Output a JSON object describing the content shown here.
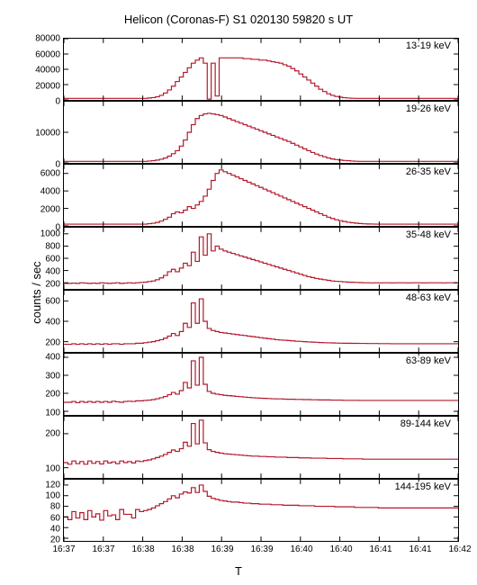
{
  "title": "Helicon (Coronas-F) S1 020130 59820 s UT",
  "ylabel": "counts / sec",
  "xlabel": "T",
  "line_color": "#b2182b",
  "background_color": "#ffffff",
  "axis_color": "#000000",
  "panel_count": 8,
  "x_domain": [
    0,
    300
  ],
  "x_ticks": [
    0,
    30,
    60,
    90,
    120,
    150,
    180,
    210,
    240,
    270,
    300
  ],
  "x_tick_labels": [
    "16:37",
    "16:37",
    "16:38",
    "16:38",
    "16:39",
    "16:39",
    "16:40",
    "16:40",
    "16:41",
    "16:41",
    "16:42"
  ],
  "panels": [
    {
      "label": "13-19 keV",
      "ylim": [
        0,
        80000
      ],
      "yticks": [
        0,
        20000,
        40000,
        60000,
        80000
      ],
      "ytick_labels": [
        "0",
        "20000",
        "40000",
        "60000",
        "80000"
      ],
      "data": [
        2000,
        2000,
        2000,
        2000,
        2000,
        2000,
        2000,
        2000,
        2000,
        2000,
        2000,
        2000,
        2000,
        2000,
        2000,
        2000,
        2000,
        2000,
        2000,
        2000,
        2000,
        2500,
        3000,
        4000,
        6000,
        9000,
        13000,
        18000,
        24000,
        30000,
        36000,
        42000,
        48000,
        52000,
        55000,
        48000,
        1000,
        48000,
        5000,
        55000,
        55000,
        55000,
        55000,
        55000,
        55000,
        54000,
        54000,
        53000,
        53000,
        52000,
        52000,
        51000,
        50000,
        49000,
        48000,
        46000,
        44000,
        41000,
        38000,
        34000,
        30000,
        26000,
        22000,
        18000,
        14000,
        11000,
        8000,
        6000,
        4500,
        3500,
        2800,
        2400,
        2200,
        2000,
        2000,
        2000,
        2000,
        2000,
        2000,
        2000,
        2000,
        2000,
        2000,
        2000,
        2000,
        2000,
        2000,
        2000,
        2000,
        2000,
        2000,
        2000,
        2000,
        2000,
        2000,
        2000,
        2000,
        2000,
        2000,
        2000
      ]
    },
    {
      "label": "19-26 keV",
      "ylim": [
        0,
        20000
      ],
      "yticks": [
        0,
        10000
      ],
      "ytick_labels": [
        "0",
        "10000"
      ],
      "data": [
        500,
        500,
        500,
        500,
        500,
        500,
        500,
        500,
        500,
        500,
        500,
        500,
        500,
        500,
        500,
        500,
        500,
        500,
        500,
        500,
        500,
        600,
        700,
        900,
        1200,
        1600,
        2200,
        3000,
        4000,
        5500,
        7500,
        10000,
        12500,
        14500,
        15500,
        16000,
        16200,
        16000,
        15800,
        15500,
        15000,
        14500,
        14000,
        13500,
        13000,
        12500,
        12000,
        11500,
        11000,
        10500,
        10000,
        9500,
        9000,
        8500,
        8000,
        7500,
        7000,
        6400,
        5800,
        5200,
        4600,
        4000,
        3400,
        2900,
        2400,
        2000,
        1600,
        1300,
        1100,
        900,
        800,
        700,
        600,
        550,
        500,
        500,
        500,
        500,
        500,
        500,
        500,
        500,
        500,
        500,
        500,
        500,
        500,
        500,
        500,
        500,
        500,
        500,
        500,
        500,
        500,
        500,
        500,
        500,
        500,
        500
      ]
    },
    {
      "label": "26-35 keV",
      "ylim": [
        0,
        7000
      ],
      "yticks": [
        0,
        2000,
        4000,
        6000
      ],
      "ytick_labels": [
        "0",
        "2000",
        "4000",
        "6000"
      ],
      "data": [
        200,
        200,
        200,
        200,
        200,
        200,
        200,
        200,
        200,
        200,
        200,
        200,
        200,
        200,
        200,
        200,
        200,
        200,
        200,
        200,
        200,
        250,
        300,
        400,
        550,
        750,
        1000,
        1400,
        1600,
        1500,
        1800,
        2200,
        2000,
        2400,
        2800,
        3400,
        4200,
        5200,
        6000,
        6400,
        6200,
        6000,
        5800,
        5600,
        5400,
        5200,
        5000,
        4800,
        4600,
        4400,
        4200,
        4000,
        3800,
        3600,
        3400,
        3200,
        3000,
        2800,
        2600,
        2400,
        2200,
        2000,
        1800,
        1600,
        1400,
        1200,
        1000,
        850,
        700,
        600,
        500,
        420,
        360,
        310,
        270,
        240,
        220,
        210,
        200,
        200,
        200,
        200,
        200,
        200,
        200,
        200,
        200,
        200,
        200,
        200,
        200,
        200,
        200,
        200,
        200,
        200,
        200,
        200,
        200,
        200
      ]
    },
    {
      "label": "35-48 keV",
      "ylim": [
        100,
        1100
      ],
      "yticks": [
        200,
        400,
        600,
        800,
        1000
      ],
      "ytick_labels": [
        "200",
        "400",
        "600",
        "800",
        "1000"
      ],
      "data": [
        190,
        190,
        195,
        190,
        200,
        195,
        190,
        195,
        190,
        200,
        195,
        190,
        195,
        200,
        190,
        195,
        200,
        195,
        200,
        205,
        210,
        220,
        230,
        250,
        280,
        320,
        380,
        420,
        380,
        440,
        520,
        480,
        700,
        550,
        950,
        650,
        1000,
        720,
        800,
        750,
        720,
        700,
        680,
        660,
        640,
        620,
        600,
        580,
        560,
        540,
        520,
        500,
        480,
        460,
        440,
        420,
        400,
        380,
        360,
        340,
        320,
        300,
        285,
        270,
        260,
        250,
        240,
        230,
        225,
        220,
        215,
        210,
        208,
        205,
        203,
        200,
        200,
        198,
        200,
        199,
        200,
        200,
        198,
        200,
        200,
        200,
        199,
        200,
        200,
        200,
        198,
        200,
        200,
        200,
        200,
        199,
        200,
        200,
        200,
        200
      ]
    },
    {
      "label": "48-63 keV",
      "ylim": [
        100,
        700
      ],
      "yticks": [
        200,
        400,
        600
      ],
      "ytick_labels": [
        "200",
        "400",
        "600"
      ],
      "data": [
        175,
        175,
        180,
        175,
        180,
        175,
        180,
        175,
        180,
        175,
        180,
        175,
        180,
        180,
        175,
        180,
        180,
        180,
        185,
        185,
        190,
        195,
        200,
        210,
        220,
        235,
        255,
        280,
        260,
        300,
        380,
        340,
        580,
        380,
        620,
        400,
        330,
        310,
        300,
        290,
        285,
        280,
        275,
        270,
        265,
        260,
        255,
        250,
        245,
        240,
        235,
        230,
        225,
        220,
        217,
        214,
        211,
        208,
        205,
        203,
        200,
        198,
        196,
        194,
        192,
        190,
        189,
        188,
        187,
        186,
        185,
        185,
        184,
        184,
        183,
        183,
        182,
        182,
        182,
        181,
        181,
        181,
        180,
        180,
        180,
        180,
        180,
        180,
        180,
        180,
        180,
        180,
        180,
        180,
        180,
        180,
        180,
        180,
        180,
        180
      ]
    },
    {
      "label": "63-89 keV",
      "ylim": [
        80,
        420
      ],
      "yticks": [
        100,
        200,
        300,
        400
      ],
      "ytick_labels": [
        "100",
        "200",
        "300",
        "400"
      ],
      "data": [
        150,
        150,
        155,
        148,
        155,
        150,
        155,
        150,
        155,
        150,
        155,
        150,
        156,
        153,
        150,
        155,
        156,
        155,
        158,
        158,
        160,
        162,
        165,
        170,
        175,
        182,
        192,
        205,
        195,
        215,
        260,
        230,
        380,
        245,
        400,
        250,
        210,
        200,
        195,
        192,
        189,
        187,
        185,
        183,
        181,
        179,
        177,
        175,
        174,
        173,
        172,
        171,
        170,
        169,
        169,
        168,
        167,
        167,
        166,
        166,
        165,
        165,
        164,
        164,
        163,
        163,
        163,
        162,
        162,
        162,
        161,
        161,
        161,
        161,
        160,
        160,
        160,
        160,
        160,
        160,
        160,
        160,
        160,
        160,
        160,
        160,
        160,
        160,
        160,
        160,
        160,
        160,
        160,
        160,
        160,
        160,
        160,
        160,
        160,
        160
      ]
    },
    {
      "label": "89-144 keV",
      "ylim": [
        70,
        250
      ],
      "yticks": [
        100,
        200
      ],
      "ytick_labels": [
        "100",
        "200"
      ],
      "data": [
        115,
        110,
        120,
        112,
        118,
        110,
        120,
        113,
        118,
        111,
        120,
        114,
        117,
        112,
        120,
        115,
        118,
        114,
        120,
        118,
        121,
        123,
        126,
        130,
        134,
        139,
        145,
        152,
        148,
        156,
        175,
        163,
        230,
        170,
        240,
        173,
        153,
        148,
        145,
        143,
        141,
        140,
        139,
        138,
        137,
        136,
        135,
        134,
        134,
        133,
        133,
        132,
        132,
        131,
        131,
        131,
        130,
        130,
        130,
        129,
        129,
        129,
        128,
        128,
        128,
        128,
        127,
        127,
        127,
        127,
        126,
        126,
        126,
        126,
        126,
        125,
        125,
        125,
        125,
        125,
        125,
        125,
        125,
        125,
        125,
        125,
        125,
        125,
        125,
        125,
        125,
        125,
        125,
        125,
        125,
        125,
        125,
        125,
        125,
        125
      ]
    },
    {
      "label": "144-195 keV",
      "ylim": [
        15,
        130
      ],
      "yticks": [
        20,
        40,
        60,
        80,
        100,
        120
      ],
      "ytick_labels": [
        "20",
        "40",
        "60",
        "80",
        "100",
        "120"
      ],
      "data": [
        60,
        55,
        70,
        58,
        68,
        55,
        72,
        60,
        66,
        54,
        72,
        62,
        64,
        55,
        74,
        65,
        65,
        58,
        74,
        70,
        72,
        74,
        77,
        81,
        85,
        89,
        94,
        100,
        96,
        103,
        107,
        105,
        115,
        106,
        120,
        108,
        99,
        95,
        93,
        91,
        90,
        89,
        88,
        88,
        87,
        86,
        86,
        85,
        85,
        84,
        84,
        84,
        83,
        83,
        83,
        82,
        82,
        82,
        82,
        81,
        81,
        81,
        81,
        80,
        80,
        80,
        80,
        80,
        79,
        79,
        79,
        79,
        79,
        78,
        78,
        78,
        78,
        78,
        78,
        77,
        77,
        77,
        77,
        77,
        77,
        77,
        77,
        77,
        77,
        77,
        77,
        77,
        77,
        77,
        77,
        77,
        77,
        77,
        77,
        77
      ]
    }
  ]
}
